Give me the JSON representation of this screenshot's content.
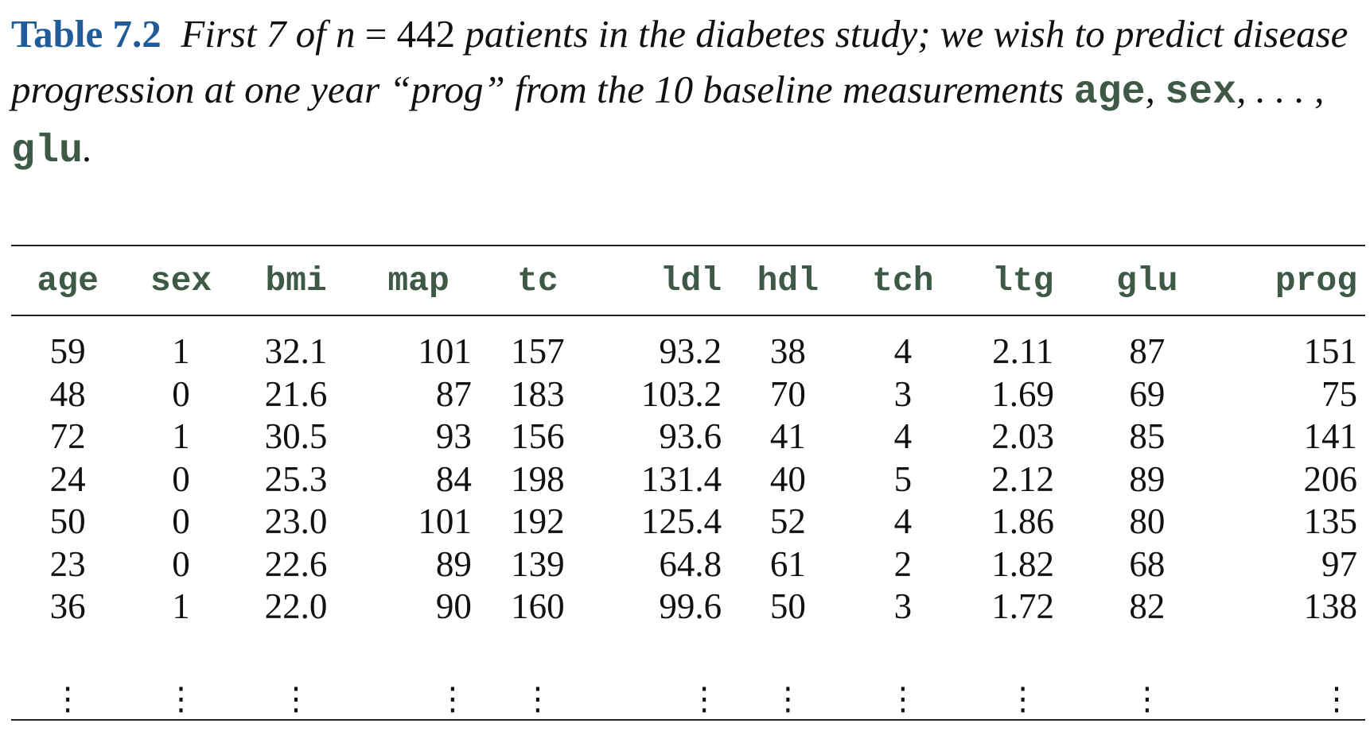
{
  "caption": {
    "label": "Table 7.2",
    "seg1": "First 7 of ",
    "n_symbol": "n",
    "equals": " = ",
    "n_value": "442",
    "seg2": " patients in the diabetes study; we wish to predict disease progression at one year “",
    "seg2b": "prog",
    "seg3": "” from the 10 baseline measurements ",
    "var_first": "age",
    "comma1": ", ",
    "var_second": "sex",
    "ellipsis": ", . . . , ",
    "var_last": "glu",
    "period": "."
  },
  "table": {
    "columns": [
      "age",
      "sex",
      "bmi",
      "map",
      "tc",
      "ldl",
      "hdl",
      "tch",
      "ltg",
      "glu",
      "prog"
    ],
    "rows": [
      [
        "59",
        "1",
        "32.1",
        "101",
        "157",
        "93.2",
        "38",
        "4",
        "2.11",
        "87",
        "151"
      ],
      [
        "48",
        "0",
        "21.6",
        "87",
        "183",
        "103.2",
        "70",
        "3",
        "1.69",
        "69",
        "75"
      ],
      [
        "72",
        "1",
        "30.5",
        "93",
        "156",
        "93.6",
        "41",
        "4",
        "2.03",
        "85",
        "141"
      ],
      [
        "24",
        "0",
        "25.3",
        "84",
        "198",
        "131.4",
        "40",
        "5",
        "2.12",
        "89",
        "206"
      ],
      [
        "50",
        "0",
        "23.0",
        "101",
        "192",
        "125.4",
        "52",
        "4",
        "1.86",
        "80",
        "135"
      ],
      [
        "23",
        "0",
        "22.6",
        "89",
        "139",
        "64.8",
        "61",
        "2",
        "1.82",
        "68",
        "97"
      ],
      [
        "36",
        "1",
        "22.0",
        "90",
        "160",
        "99.6",
        "50",
        "3",
        "1.72",
        "82",
        "138"
      ]
    ],
    "continuation": "⋮"
  }
}
